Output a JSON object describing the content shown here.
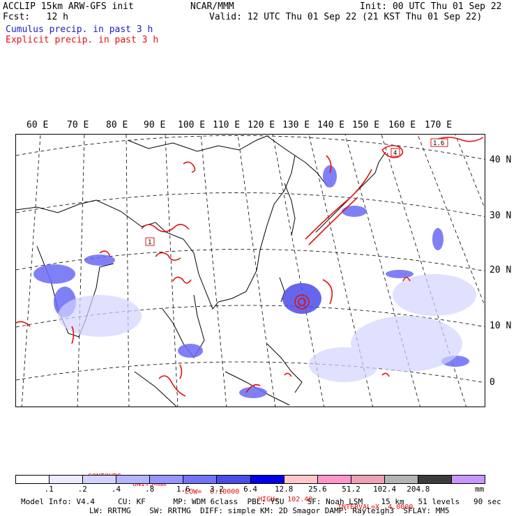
{
  "header": {
    "title": "ACCLIP 15km ARW-GFS init",
    "forecast": "Fcst:   12 h",
    "center": "NCAR/MMM",
    "init": "Init: 00 UTC Thu 01 Sep 22",
    "valid": "Valid: 12 UTC Thu 01 Sep 22 (21 KST Thu 01 Sep 22)",
    "legend_cumulus": "Cumulus precip. in past 3 h",
    "legend_explicit": "Explicit precip. in past 3 h"
  },
  "map": {
    "lon_labels": [
      "60 E",
      "70 E",
      "80 E",
      "90 E",
      "100 E",
      "110 E",
      "120 E",
      "130 E",
      "140 E",
      "150 E",
      "160 E",
      "170 E"
    ],
    "lat_labels": [
      "40 N",
      "30 N",
      "20 N",
      "10 N",
      "0"
    ],
    "contour_labels": [
      "1",
      "4",
      "1.6"
    ]
  },
  "contours_line": {
    "label": "CONTOURS:",
    "units": "UNITS=mm",
    "low": "LOW=  0.10000",
    "high": "HIGH=  102.40",
    "interval": "INTERVAL=X  4.0000"
  },
  "colorbar": {
    "colors": [
      "#ffffff",
      "#ebebff",
      "#d3d3ff",
      "#b4b4ff",
      "#9696ff",
      "#7373f5",
      "#4b4be6",
      "#0000e6",
      "#ffc8c8",
      "#ff96c8",
      "#f0a0b4",
      "#b4b4b4",
      "#3c3c3c",
      "#c896ff"
    ],
    "labels": [
      ".1",
      ".2",
      ".4",
      ".8",
      "1.6",
      "3.2",
      "6.4",
      "12.8",
      "25.6",
      "51.2",
      "102.4",
      "204.8"
    ],
    "unit": "mm"
  },
  "model_info": {
    "line1": "Model Info: V4.4     CU: KF      MP: WDM 6class  PBL: YSU     SF: Noah LSM    15 km   51 levels   90 sec",
    "line2": "LW: RRTMG    SW: RRTMG  DIFF: simple KM: 2D Smagor DAMP: Rayleigh3  SFLAY: MM5"
  }
}
